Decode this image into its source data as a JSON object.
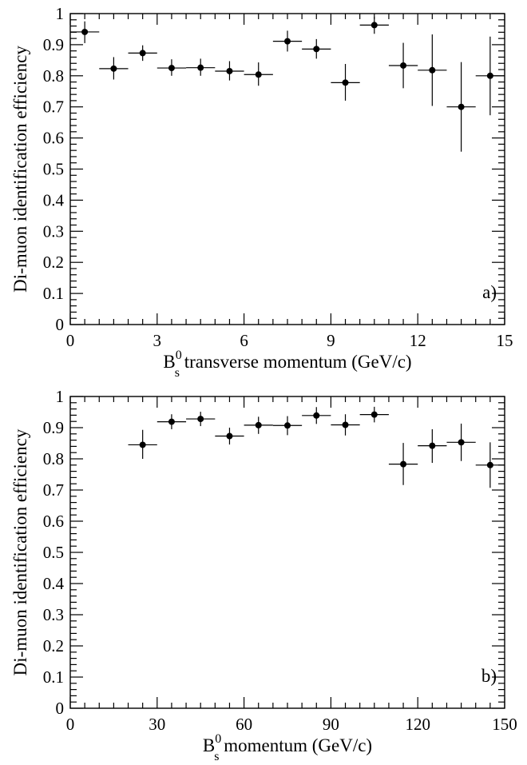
{
  "chart_data": [
    {
      "type": "scatter",
      "panel_label": "a)",
      "ylabel": "Di-muon identification efficiency",
      "xlabel": {
        "main": "B",
        "sup": "0",
        "sub": "s",
        "rest": " transverse momentum (GeV/c)"
      },
      "xlim": [
        0,
        15
      ],
      "ylim": [
        0,
        1
      ],
      "xticks": [
        "0",
        "3",
        "6",
        "9",
        "12",
        "15"
      ],
      "yticks": [
        "0",
        "0.1",
        "0.2",
        "0.3",
        "0.4",
        "0.5",
        "0.6",
        "0.7",
        "0.8",
        "0.9",
        "1"
      ],
      "bin_halfwidth": 0.5,
      "points": [
        {
          "x": 0.5,
          "y": 0.941,
          "ylo": 0.905,
          "yhi": 0.975
        },
        {
          "x": 1.5,
          "y": 0.823,
          "ylo": 0.788,
          "yhi": 0.86
        },
        {
          "x": 2.5,
          "y": 0.873,
          "ylo": 0.848,
          "yhi": 0.898
        },
        {
          "x": 3.5,
          "y": 0.825,
          "ylo": 0.8,
          "yhi": 0.853
        },
        {
          "x": 4.5,
          "y": 0.826,
          "ylo": 0.8,
          "yhi": 0.855
        },
        {
          "x": 5.5,
          "y": 0.815,
          "ylo": 0.785,
          "yhi": 0.847
        },
        {
          "x": 6.5,
          "y": 0.804,
          "ylo": 0.768,
          "yhi": 0.843
        },
        {
          "x": 7.5,
          "y": 0.911,
          "ylo": 0.878,
          "yhi": 0.945
        },
        {
          "x": 8.5,
          "y": 0.886,
          "ylo": 0.855,
          "yhi": 0.918
        },
        {
          "x": 9.5,
          "y": 0.778,
          "ylo": 0.72,
          "yhi": 0.838
        },
        {
          "x": 10.5,
          "y": 0.963,
          "ylo": 0.935,
          "yhi": 0.99
        },
        {
          "x": 11.5,
          "y": 0.833,
          "ylo": 0.76,
          "yhi": 0.906
        },
        {
          "x": 12.5,
          "y": 0.818,
          "ylo": 0.703,
          "yhi": 0.933
        },
        {
          "x": 13.5,
          "y": 0.7,
          "ylo": 0.556,
          "yhi": 0.844
        },
        {
          "x": 14.5,
          "y": 0.8,
          "ylo": 0.673,
          "yhi": 0.926
        }
      ]
    },
    {
      "type": "scatter",
      "panel_label": "b)",
      "ylabel": "Di-muon identification efficiency",
      "xlabel": {
        "main": "B",
        "sup": "0",
        "sub": "s",
        "rest": " momentum (GeV/c)"
      },
      "xlim": [
        0,
        150
      ],
      "ylim": [
        0,
        1
      ],
      "xticks": [
        "0",
        "30",
        "60",
        "90",
        "120",
        "150"
      ],
      "yticks": [
        "0",
        "0.1",
        "0.2",
        "0.3",
        "0.4",
        "0.5",
        "0.6",
        "0.7",
        "0.8",
        "0.9",
        "1"
      ],
      "bin_halfwidth": 5,
      "points": [
        {
          "x": 25,
          "y": 0.845,
          "ylo": 0.8,
          "yhi": 0.893
        },
        {
          "x": 35,
          "y": 0.919,
          "ylo": 0.895,
          "yhi": 0.943
        },
        {
          "x": 45,
          "y": 0.928,
          "ylo": 0.905,
          "yhi": 0.951
        },
        {
          "x": 55,
          "y": 0.873,
          "ylo": 0.846,
          "yhi": 0.9
        },
        {
          "x": 65,
          "y": 0.908,
          "ylo": 0.88,
          "yhi": 0.935
        },
        {
          "x": 75,
          "y": 0.907,
          "ylo": 0.876,
          "yhi": 0.937
        },
        {
          "x": 85,
          "y": 0.939,
          "ylo": 0.912,
          "yhi": 0.966
        },
        {
          "x": 95,
          "y": 0.909,
          "ylo": 0.875,
          "yhi": 0.943
        },
        {
          "x": 105,
          "y": 0.942,
          "ylo": 0.917,
          "yhi": 0.967
        },
        {
          "x": 115,
          "y": 0.783,
          "ylo": 0.716,
          "yhi": 0.851
        },
        {
          "x": 125,
          "y": 0.842,
          "ylo": 0.787,
          "yhi": 0.895
        },
        {
          "x": 135,
          "y": 0.853,
          "ylo": 0.793,
          "yhi": 0.913
        },
        {
          "x": 145,
          "y": 0.78,
          "ylo": 0.707,
          "yhi": 0.853
        }
      ]
    }
  ]
}
